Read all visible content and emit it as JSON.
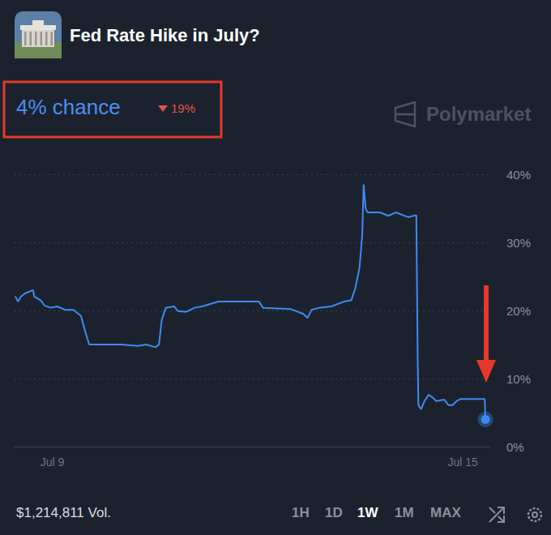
{
  "chart_data": {
    "type": "line",
    "title": "Fed Rate Hike in July?",
    "annotations": [
      "4% chance",
      "19%",
      "Polymarket",
      "$1,214,811 Vol.",
      "1H",
      "1D",
      "1W",
      "1M",
      "MAX"
    ],
    "x": [
      8.46,
      8.5,
      8.54,
      8.6,
      8.72,
      8.74,
      8.83,
      8.89,
      8.98,
      9.07,
      9.19,
      9.31,
      9.42,
      9.48,
      9.54,
      10.01,
      10.25,
      10.37,
      10.51,
      10.56,
      10.6,
      10.66,
      10.78,
      10.84,
      10.96,
      11.08,
      11.19,
      11.43,
      12.02,
      12.08,
      12.49,
      12.67,
      12.73,
      12.79,
      12.9,
      13.08,
      13.26,
      13.37,
      13.43,
      13.49,
      13.53,
      13.55,
      13.58,
      13.61,
      13.79,
      13.91,
      14.02,
      14.2,
      14.32,
      14.34,
      14.35,
      14.39,
      14.44,
      14.5,
      14.55,
      14.61,
      14.73,
      14.79,
      14.85,
      14.91,
      14.97,
      15.08,
      15.32,
      15.33
    ],
    "values": [
      22.1,
      21.3,
      22,
      22.5,
      23,
      22,
      21.5,
      20.7,
      20.4,
      20.6,
      20.1,
      20.1,
      19.2,
      17,
      15,
      15,
      14.8,
      15,
      14.6,
      15,
      18.6,
      20.4,
      20.6,
      19.9,
      19.8,
      20.4,
      20.6,
      21.3,
      21.3,
      20.4,
      20.2,
      19.5,
      18.9,
      20.1,
      20.4,
      20.6,
      21.3,
      21.5,
      23.3,
      26.3,
      31.1,
      38.5,
      34.9,
      34.4,
      34.4,
      33.9,
      34.4,
      33.7,
      34,
      13.2,
      6.1,
      5.5,
      6.7,
      7.6,
      7.3,
      6.7,
      6.9,
      6.1,
      6.1,
      6.7,
      7,
      7,
      7,
      4
    ],
    "color": "#3d8bf2",
    "xlim": [
      8.45,
      15.4
    ],
    "xticks": [
      {
        "value": 9,
        "label": "Jul 9"
      },
      {
        "value": 15,
        "label": "Jul 15"
      }
    ],
    "ylim": [
      0,
      40
    ],
    "yticks": [
      {
        "value": 0,
        "label": "0%"
      },
      {
        "value": 10,
        "label": "10%"
      },
      {
        "value": 20,
        "label": "20%"
      },
      {
        "value": 30,
        "label": "30%"
      },
      {
        "value": 40,
        "label": "40%"
      }
    ],
    "grid": true
  }
}
